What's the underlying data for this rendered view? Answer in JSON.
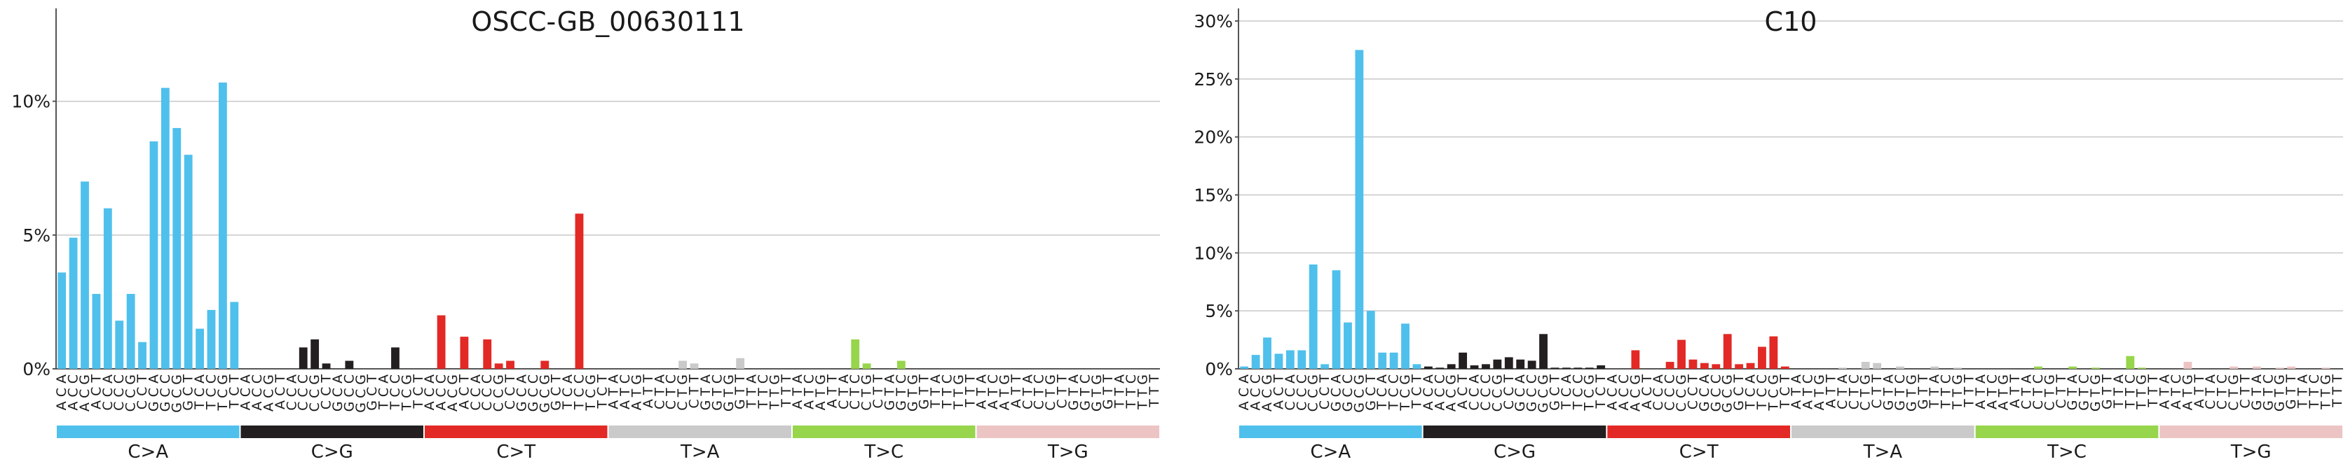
{
  "chart_data": [
    {
      "type": "bar",
      "title": "OSCC-GB_00630111",
      "xlabel": "",
      "ylabel": "",
      "ylim": [
        0,
        0.13
      ],
      "yticks": [
        0,
        0.05,
        0.1
      ],
      "ytick_labels": [
        "0%",
        "5%",
        "10%"
      ],
      "grid": true,
      "values": [
        0.036,
        0.049,
        0.07,
        0.028,
        0.06,
        0.018,
        0.028,
        0.01,
        0.085,
        0.105,
        0.09,
        0.08,
        0.015,
        0.022,
        0.107,
        0.025,
        0,
        0,
        0,
        0,
        0,
        0.008,
        0.011,
        0.002,
        0,
        0.003,
        0,
        0,
        0,
        0.008,
        0,
        0,
        0,
        0.02,
        0,
        0.012,
        0,
        0.011,
        0.002,
        0.003,
        0,
        0,
        0.003,
        0,
        0,
        0.058,
        0,
        0,
        0,
        0,
        0,
        0,
        0,
        0,
        0.003,
        0.002,
        0,
        0,
        0,
        0.004,
        0,
        0,
        0,
        0,
        0,
        0,
        0,
        0,
        0,
        0.011,
        0.002,
        0,
        0,
        0.003,
        0,
        0,
        0,
        0,
        0,
        0,
        0,
        0,
        0,
        0,
        0,
        0,
        0,
        0,
        0,
        0,
        0,
        0,
        0,
        0,
        0,
        0
      ]
    },
    {
      "type": "bar",
      "title": "C10",
      "xlabel": "",
      "ylabel": "",
      "ylim": [
        0,
        0.3
      ],
      "yticks": [
        0,
        0.05,
        0.1,
        0.15,
        0.2,
        0.25,
        0.3
      ],
      "ytick_labels": [
        "0%",
        "5%",
        "10%",
        "15%",
        "20%",
        "25%",
        "30%"
      ],
      "grid": true,
      "values": [
        0.002,
        0.012,
        0.027,
        0.013,
        0.016,
        0.016,
        0.09,
        0.004,
        0.085,
        0.04,
        0.275,
        0.05,
        0.014,
        0.014,
        0.039,
        0.004,
        0.002,
        0.001,
        0.004,
        0.014,
        0.003,
        0.004,
        0.008,
        0.01,
        0.008,
        0.007,
        0.03,
        0.001,
        0.001,
        0.001,
        0.001,
        0.003,
        0,
        0,
        0.016,
        0,
        0,
        0.006,
        0.025,
        0.008,
        0.005,
        0.004,
        0.03,
        0.004,
        0.005,
        0.019,
        0.028,
        0.002,
        0,
        0,
        0,
        0,
        0.001,
        0,
        0.006,
        0.005,
        0,
        0.002,
        0,
        0,
        0.002,
        0,
        0.001,
        0,
        0,
        0,
        0,
        0,
        0,
        0.002,
        0,
        0,
        0.002,
        0,
        0.001,
        0,
        0,
        0.011,
        0.001,
        0,
        0,
        0,
        0.006,
        0,
        0,
        0,
        0.002,
        0,
        0.002,
        0,
        0.001,
        0.002,
        0,
        0,
        0.001,
        0
      ]
    }
  ],
  "mutation_groups": [
    {
      "label": "C>A",
      "color": "#4fc0ec"
    },
    {
      "label": "C>G",
      "color": "#231f20"
    },
    {
      "label": "C>T",
      "color": "#e22925"
    },
    {
      "label": "T>A",
      "color": "#cbcacb"
    },
    {
      "label": "T>C",
      "color": "#97d54c"
    },
    {
      "label": "T>G",
      "color": "#ecc4c4"
    }
  ],
  "contexts_C": [
    "A C A",
    "A C C",
    "A C G",
    "A C T",
    "C C A",
    "C C C",
    "C C G",
    "C C T",
    "G C A",
    "G C C",
    "G C G",
    "G C T",
    "T C A",
    "T C C",
    "T C G",
    "T C T"
  ],
  "contexts_T": [
    "A T A",
    "A T C",
    "A T G",
    "A T T",
    "C T A",
    "C T C",
    "C T G",
    "C T T",
    "G T A",
    "G T C",
    "G T G",
    "G T T",
    "T T A",
    "T T C",
    "T T G",
    "T T T"
  ]
}
